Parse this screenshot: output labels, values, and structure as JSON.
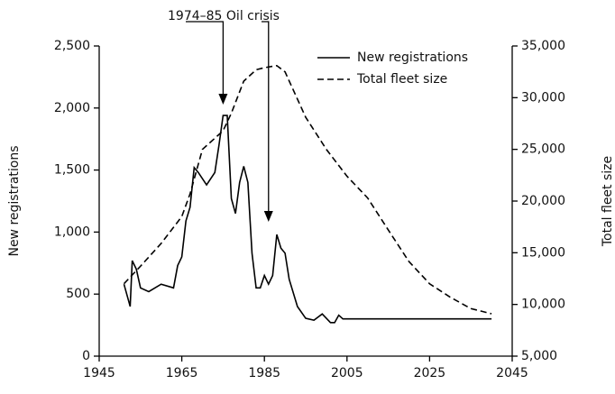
{
  "chart_data": {
    "type": "line",
    "annotation": "1974–85 Oil crisis",
    "ylabel": "New registrations",
    "y2label": "Total fleet size",
    "legend": "upper right",
    "xlim": [
      1945,
      2045
    ],
    "xticks": [
      1945,
      1965,
      1985,
      2005,
      2025,
      2045
    ],
    "ylim": [
      0,
      2500
    ],
    "yticks": [
      0,
      500,
      {
        "value": 1000,
        "label": "1,000"
      },
      {
        "value": 1500,
        "label": "1,500"
      },
      {
        "value": 2000,
        "label": "2,000"
      },
      {
        "value": 2500,
        "label": "2,500"
      }
    ],
    "y2lim": [
      5000,
      35000
    ],
    "y2ticks": [
      {
        "value": 5000,
        "label": "5,000"
      },
      {
        "value": 10000,
        "label": "10,000"
      },
      {
        "value": 15000,
        "label": "15,000"
      },
      {
        "value": 20000,
        "label": "20,000"
      },
      {
        "value": 25000,
        "label": "25,000"
      },
      {
        "value": 30000,
        "label": "30,000"
      },
      {
        "value": 35000,
        "label": "35,000"
      }
    ],
    "series": [
      {
        "name": "New registrations",
        "color": "#000000",
        "line_style": "solid",
        "x": [
          1951,
          1952.5,
          1953,
          1954,
          1955,
          1957,
          1960,
          1963,
          1964,
          1965,
          1966,
          1967,
          1968,
          1969,
          1971,
          1973,
          1974,
          1975,
          1976,
          1977,
          1978,
          1979,
          1980,
          1981,
          1982,
          1983,
          1984,
          1985,
          1986,
          1987,
          1988,
          1989,
          1990,
          1991,
          1993,
          1995,
          1997,
          1999,
          2001,
          2002,
          2003,
          2004,
          2040
        ],
        "values": [
          580,
          400,
          770,
          700,
          550,
          520,
          580,
          550,
          730,
          800,
          1090,
          1200,
          1520,
          1480,
          1380,
          1480,
          1700,
          1940,
          1940,
          1270,
          1150,
          1400,
          1530,
          1400,
          830,
          550,
          550,
          650,
          580,
          650,
          980,
          870,
          830,
          620,
          400,
          305,
          290,
          340,
          270,
          270,
          330,
          300,
          300
        ]
      },
      {
        "name": "Total fleet size",
        "color": "#000000",
        "line_style": "dashed",
        "axis": "y2",
        "x": [
          1951,
          1955,
          1960,
          1965,
          1967,
          1970,
          1975,
          1977,
          1980,
          1983,
          1985,
          1988,
          1990,
          1995,
          2000,
          2005,
          2010,
          2015,
          2020,
          2025,
          2030,
          2035,
          2040
        ],
        "values": [
          12000,
          13700,
          15900,
          18500,
          20700,
          25000,
          26800,
          28500,
          31600,
          32700,
          32900,
          33100,
          32500,
          28100,
          25000,
          22400,
          20300,
          17200,
          14150,
          12000,
          10700,
          9600,
          9100
        ]
      }
    ]
  }
}
